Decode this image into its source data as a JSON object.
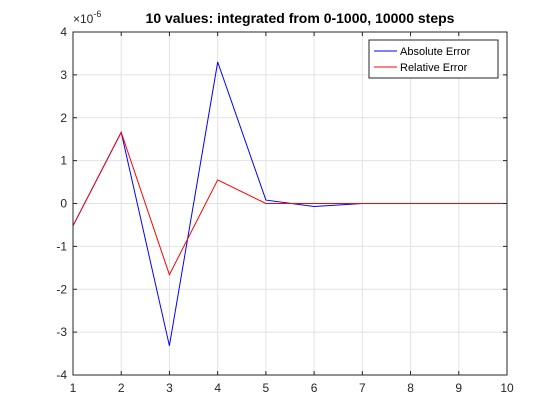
{
  "chart_data": {
    "type": "line",
    "title": "10 values: integrated from 0-1000, 10000 steps",
    "xlabel": "",
    "ylabel": "",
    "y_multiplier": "×10",
    "y_multiplier_exponent": "-6",
    "xlim": [
      1,
      10
    ],
    "ylim": [
      -4,
      4
    ],
    "xticks": [
      1,
      2,
      3,
      4,
      5,
      6,
      7,
      8,
      9,
      10
    ],
    "yticks": [
      -4,
      -3,
      -2,
      -1,
      0,
      1,
      2,
      3,
      4
    ],
    "grid": true,
    "legend_position": "top-right",
    "x": [
      1,
      2,
      3,
      4,
      5,
      6,
      7,
      8,
      9,
      10
    ],
    "series": [
      {
        "name": "Absolute Error",
        "color": "#0000ff",
        "values": [
          -0.52,
          1.66,
          -3.32,
          3.3,
          0.08,
          -0.07,
          0.0,
          0.0,
          0.0,
          0.0
        ]
      },
      {
        "name": "Relative Error",
        "color": "#ff0000",
        "values": [
          -0.52,
          1.66,
          -1.66,
          0.55,
          0.0,
          0.0,
          0.0,
          0.0,
          0.0,
          0.0
        ]
      }
    ]
  }
}
